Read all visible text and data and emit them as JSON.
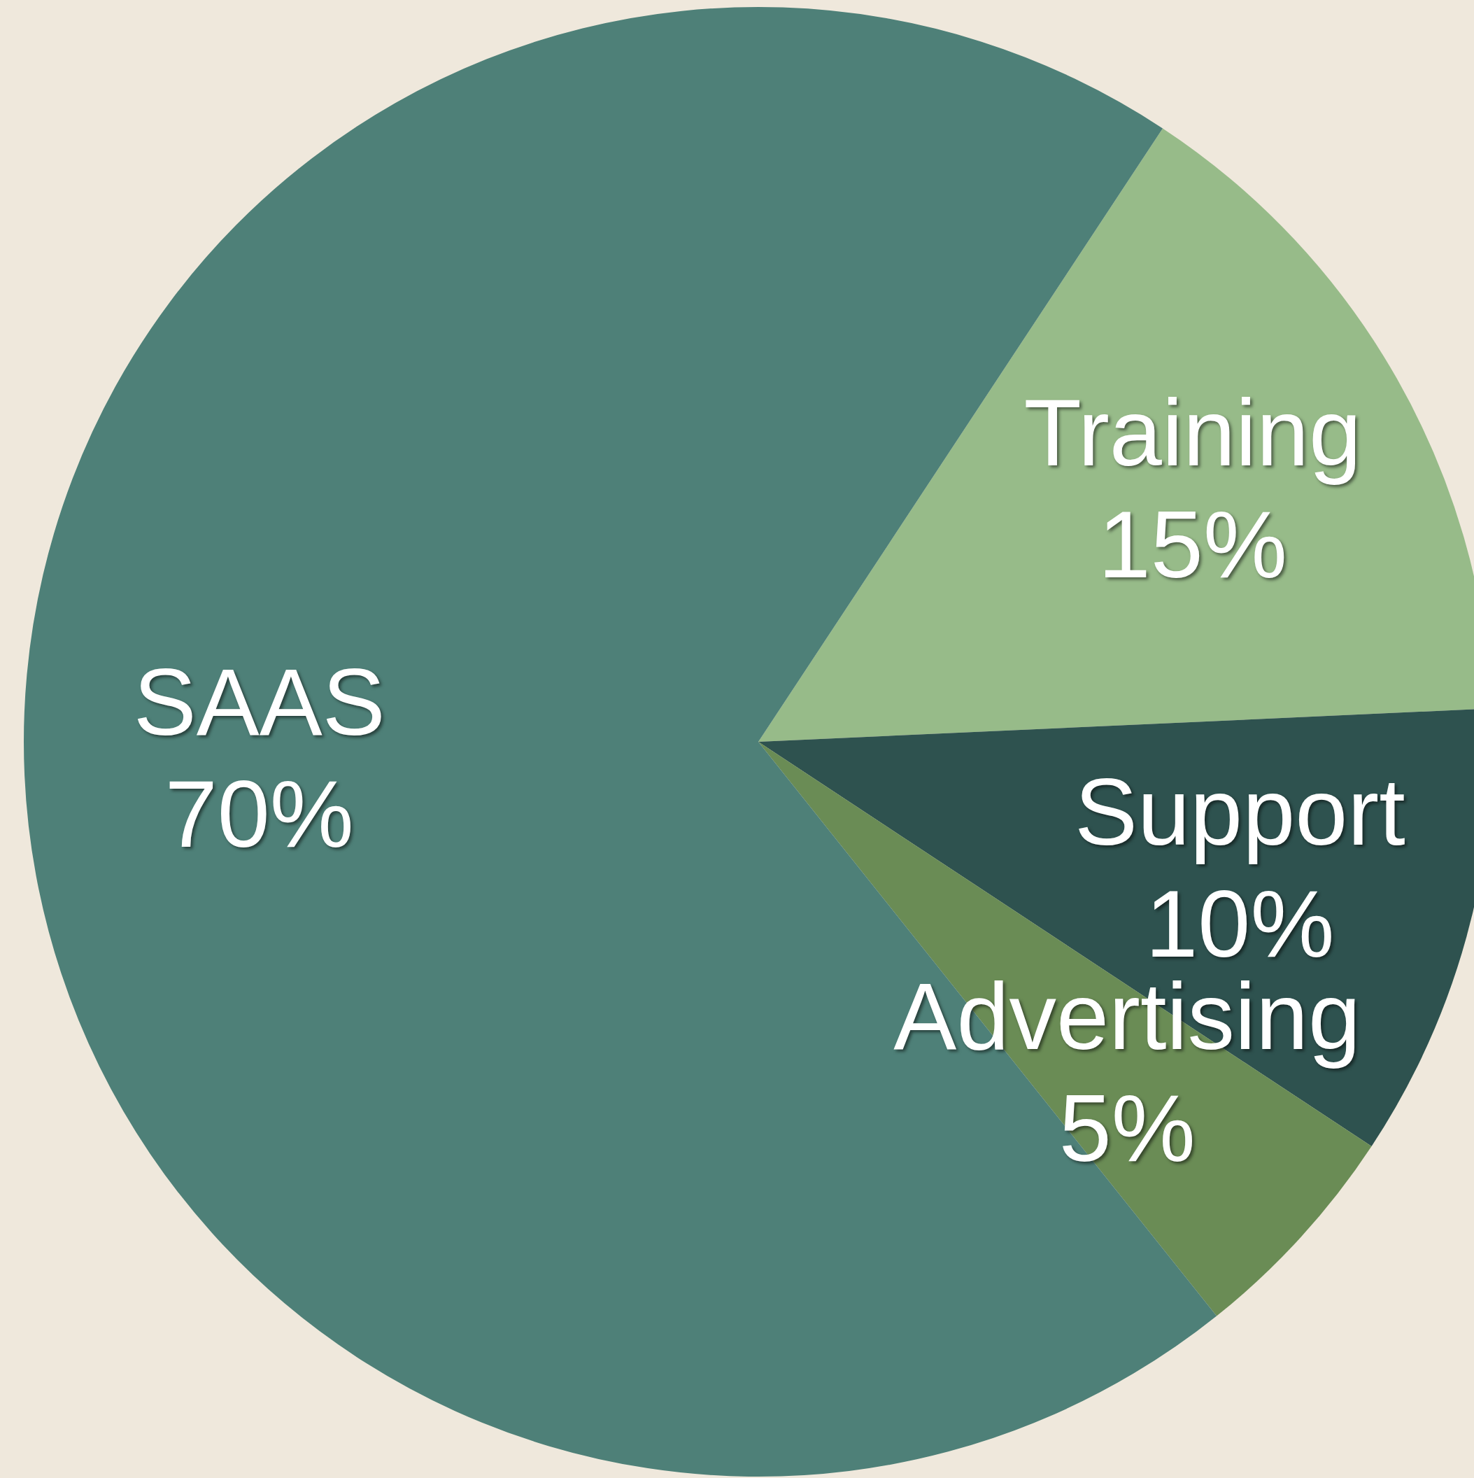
{
  "chart_data": {
    "type": "pie",
    "categories": [
      "Training",
      "Support",
      "Advertising",
      "SAAS"
    ],
    "values": [
      15,
      10,
      5,
      70
    ],
    "value_labels": [
      "15%",
      "10%",
      "5%",
      "70%"
    ],
    "colors": [
      "#97bb89",
      "#2e524f",
      "#6a8c55",
      "#4e8078"
    ],
    "legend": false
  }
}
